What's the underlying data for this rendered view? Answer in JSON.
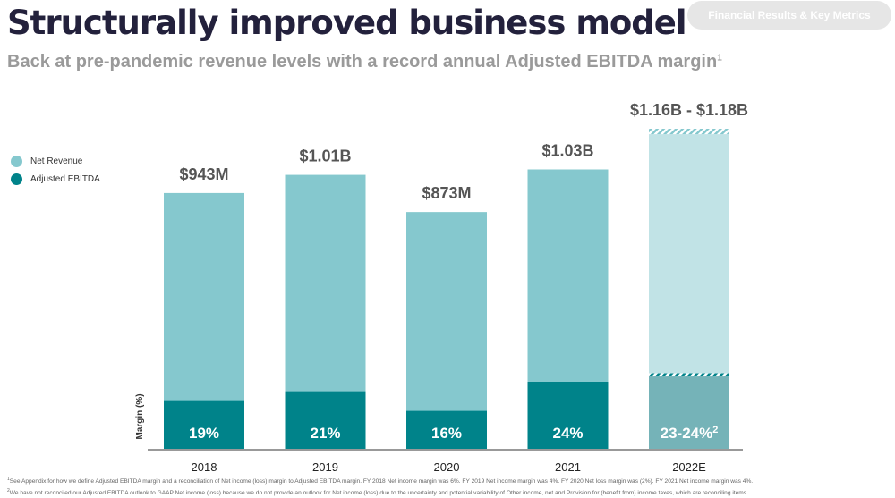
{
  "header": {
    "title": "Structurally improved business model",
    "subtitle": "Back at pre-pandemic revenue levels with a record annual Adjusted EBITDA margin",
    "subtitle_sup": "1",
    "section_pill": "Financial Results & Key Metrics"
  },
  "colors": {
    "net_revenue": "#85c8ce",
    "net_revenue_forecast": "#c1e3e6",
    "adjusted_ebitda": "#00838a",
    "adjusted_ebitda_forecast": "#75b3b8",
    "axis": "#999999"
  },
  "chart_data": {
    "type": "bar",
    "categories": [
      "2018",
      "2019",
      "2020",
      "2021",
      "2022E"
    ],
    "legend": [
      {
        "name": "Net Revenue",
        "color": "#85c8ce"
      },
      {
        "name": "Adjusted EBITDA",
        "color": "#00838a"
      }
    ],
    "series": [
      {
        "name": "Net Revenue",
        "values": [
          943,
          1010,
          873,
          1030,
          1160
        ],
        "range_high": [
          null,
          null,
          null,
          null,
          1180
        ],
        "labels": [
          "$943M",
          "$1.01B",
          "$873M",
          "$1.03B",
          "$1.16B - $1.18B"
        ]
      },
      {
        "name": "Adjusted EBITDA",
        "margin_pct": [
          19,
          21,
          16,
          24,
          23
        ],
        "margin_pct_high": [
          null,
          null,
          null,
          null,
          24
        ],
        "labels": [
          "19%",
          "21%",
          "16%",
          "24%",
          "23-24%"
        ],
        "label_sup": [
          "",
          "",
          "",
          "",
          "2"
        ]
      }
    ],
    "ylabel": "Margin (%)",
    "ylim": [
      0,
      1180
    ],
    "forecast_index": 4
  },
  "footnotes": [
    {
      "sup": "1",
      "text": "See Appendix for how we define Adjusted EBITDA margin and a reconciliation of Net income (loss) margin to Adjusted EBITDA margin. FY 2018 Net income margin was 6%. FY 2019 Net income margin was 4%. FY 2020 Net loss margin was (2%). FY 2021 Net income margin was 4%."
    },
    {
      "sup": "2",
      "text": "We have not reconciled our Adjusted EBITDA outlook to GAAP Net income (loss) because we do not provide an outlook for Net income (loss) due to the uncertainty and potential variability of Other income, net and Provision for (benefit from) income taxes, which are reconciling items"
    }
  ]
}
